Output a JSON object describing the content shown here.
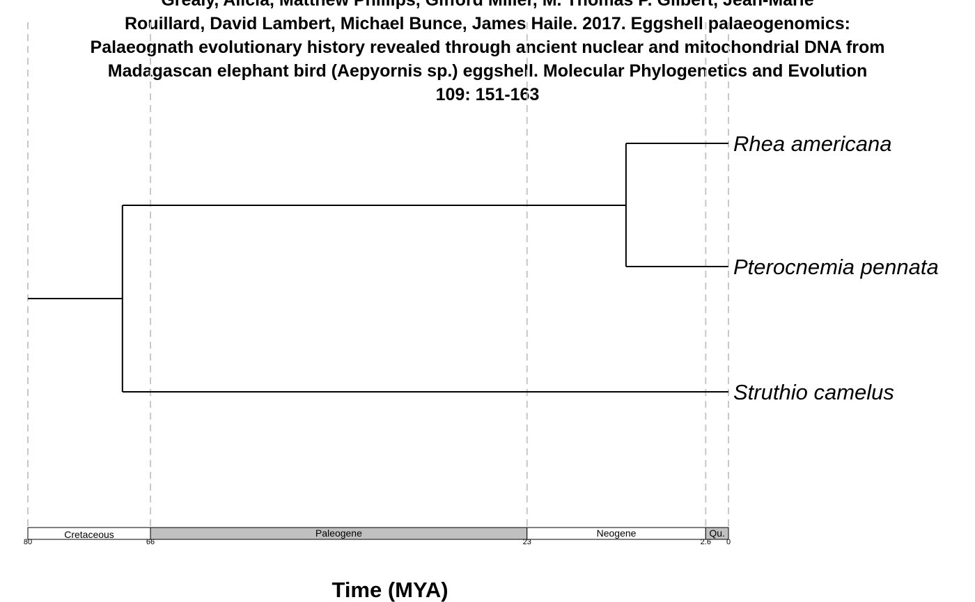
{
  "title_lines": [
    "Grealy, Alicia, Matthew Phillips, Gifford Miller, M. Thomas P. Gilbert, Jean-Marie",
    "Rouillard, David Lambert, Michael Bunce, James Haile. 2017. Eggshell palaeogenomics:",
    "Palaeognath evolutionary history revealed through ancient nuclear and mitochondrial DNA from",
    "Madagascan elephant bird (Aepyornis sp.) eggshell. Molecular Phylogenetics and Evolution",
    "109: 151-163"
  ],
  "tree": {
    "root_age": 80,
    "nodes": [
      {
        "id": "root",
        "age": 80
      },
      {
        "id": "n1",
        "age": 69.2
      },
      {
        "id": "n2",
        "age": 11.7
      }
    ],
    "tips": [
      {
        "name": "Rhea americana",
        "age": 0,
        "parent": "n2"
      },
      {
        "name": "Pterocnemia pennata",
        "age": 0,
        "parent": "n2"
      },
      {
        "name": "Struthio camelus",
        "age": 0,
        "parent": "n1"
      }
    ],
    "edges": [
      {
        "from": "root",
        "to": "n1"
      },
      {
        "from": "n1",
        "to": "n2"
      },
      {
        "from": "n2",
        "to": "Rhea americana"
      },
      {
        "from": "n2",
        "to": "Pterocnemia pennata"
      },
      {
        "from": "n1",
        "to": "Struthio camelus"
      }
    ]
  },
  "timescale": {
    "periods": [
      {
        "name": "Cretaceous",
        "start": 80,
        "end": 66,
        "fill": "#ffffff"
      },
      {
        "name": "Paleogene",
        "start": 66,
        "end": 23,
        "fill": "#c0c0c0"
      },
      {
        "name": "Neogene",
        "start": 23,
        "end": 2.6,
        "fill": "#ffffff"
      },
      {
        "name": "Qu.",
        "start": 2.6,
        "end": 0,
        "fill": "#c0c0c0"
      }
    ],
    "ticks": [
      "80",
      "66",
      "23",
      "2.6",
      "0"
    ],
    "boundary_lines": [
      80,
      66,
      23,
      2.6,
      0
    ]
  },
  "axis": {
    "xlabel": "Time (MYA)",
    "direction": "reversed"
  },
  "colors": {
    "branch": "#000000",
    "gridline": "#c8c8c8",
    "text": "#000000"
  }
}
